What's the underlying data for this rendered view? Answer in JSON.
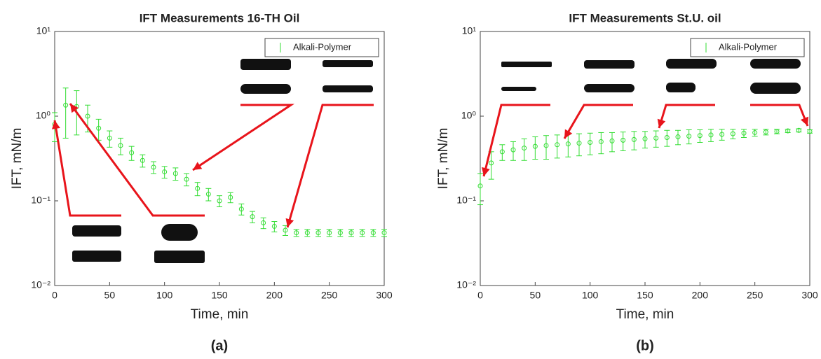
{
  "chart_data": [
    {
      "type": "line",
      "title": "IFT Measurements 16-TH Oil",
      "panel_label": "(a)",
      "xlabel": "Time, min",
      "ylabel": "IFT, mN/m",
      "x": [
        0,
        10,
        20,
        30,
        40,
        50,
        60,
        70,
        80,
        90,
        100,
        110,
        120,
        130,
        140,
        150,
        160,
        170,
        180,
        190,
        200,
        210,
        220,
        230,
        240,
        250,
        260,
        270,
        280,
        290,
        300
      ],
      "series": [
        {
          "name": "Alkali-Polymer",
          "color": "#33dd33",
          "values": [
            0.8,
            1.35,
            1.3,
            1.0,
            0.72,
            0.55,
            0.45,
            0.37,
            0.3,
            0.25,
            0.22,
            0.21,
            0.18,
            0.14,
            0.12,
            0.1,
            0.11,
            0.08,
            0.065,
            0.055,
            0.05,
            0.045,
            0.042,
            0.042,
            0.042,
            0.042,
            0.042,
            0.042,
            0.042,
            0.042,
            0.042
          ],
          "errors": [
            0.3,
            0.8,
            0.7,
            0.35,
            0.2,
            0.12,
            0.1,
            0.07,
            0.05,
            0.04,
            0.035,
            0.035,
            0.03,
            0.025,
            0.02,
            0.015,
            0.015,
            0.012,
            0.01,
            0.008,
            0.007,
            0.006,
            0.004,
            0.004,
            0.004,
            0.004,
            0.004,
            0.004,
            0.004,
            0.004,
            0.004
          ]
        }
      ],
      "xlim": [
        0,
        300
      ],
      "ylim": [
        0.01,
        10
      ],
      "log_y": true,
      "legend": "upper right",
      "xticks": [
        0,
        50,
        100,
        150,
        200,
        250,
        300
      ],
      "yticks": [
        {
          "value": 0.01,
          "label": "10⁻²"
        },
        {
          "value": 0.1,
          "label": "10⁻¹"
        },
        {
          "value": 1,
          "label": "10⁰"
        },
        {
          "value": 10,
          "label": "10¹"
        }
      ]
    },
    {
      "type": "line",
      "title": "IFT Measurements St.U. oil",
      "panel_label": "(b)",
      "xlabel": "Time, min",
      "ylabel": "IFT, mN/m",
      "x": [
        0,
        10,
        20,
        30,
        40,
        50,
        60,
        70,
        80,
        90,
        100,
        110,
        120,
        130,
        140,
        150,
        160,
        170,
        180,
        190,
        200,
        210,
        220,
        230,
        240,
        250,
        260,
        270,
        280,
        290,
        300
      ],
      "series": [
        {
          "name": "Alkali-Polymer",
          "color": "#33dd33",
          "values": [
            0.15,
            0.28,
            0.38,
            0.4,
            0.42,
            0.44,
            0.45,
            0.46,
            0.47,
            0.48,
            0.49,
            0.5,
            0.51,
            0.52,
            0.53,
            0.54,
            0.55,
            0.56,
            0.57,
            0.58,
            0.59,
            0.6,
            0.61,
            0.62,
            0.63,
            0.64,
            0.65,
            0.66,
            0.67,
            0.68,
            0.66
          ],
          "errors": [
            0.06,
            0.1,
            0.08,
            0.1,
            0.12,
            0.13,
            0.14,
            0.14,
            0.14,
            0.14,
            0.14,
            0.14,
            0.13,
            0.13,
            0.13,
            0.12,
            0.12,
            0.12,
            0.11,
            0.11,
            0.1,
            0.1,
            0.09,
            0.08,
            0.07,
            0.06,
            0.05,
            0.04,
            0.03,
            0.03,
            0.03
          ]
        }
      ],
      "xlim": [
        0,
        300
      ],
      "ylim": [
        0.01,
        10
      ],
      "log_y": true,
      "legend": "upper right",
      "xticks": [
        0,
        50,
        100,
        150,
        200,
        250,
        300
      ],
      "yticks": [
        {
          "value": 0.01,
          "label": "10⁻²"
        },
        {
          "value": 0.1,
          "label": "10⁻¹"
        },
        {
          "value": 1,
          "label": "10⁰"
        },
        {
          "value": 10,
          "label": "10¹"
        }
      ]
    }
  ]
}
